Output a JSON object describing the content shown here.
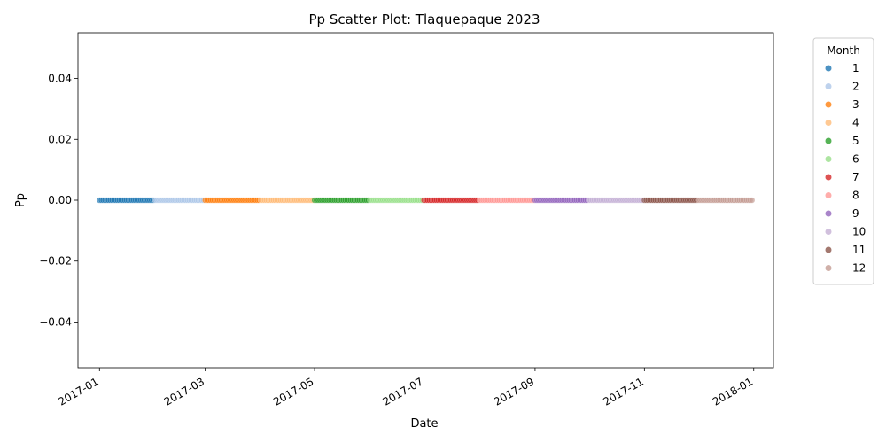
{
  "chart_data": {
    "type": "scatter",
    "title": "Pp Scatter Plot: Tlaquepaque 2023",
    "xlabel": "Date",
    "ylabel": "Pp",
    "x_start": "2017-01-01",
    "x_end": "2017-12-31",
    "xlim": [
      "2016-12-20",
      "2018-01-12"
    ],
    "ylim": [
      -0.055,
      0.055
    ],
    "x_ticks": [
      "2017-01",
      "2017-03",
      "2017-05",
      "2017-07",
      "2017-09",
      "2017-11",
      "2018-01"
    ],
    "y_ticks": [
      "−0.04",
      "−0.02",
      "0.00",
      "0.02",
      "0.04"
    ],
    "y_tick_values": [
      -0.04,
      -0.02,
      0.0,
      0.02,
      0.04
    ],
    "value": 0.0,
    "grid": false,
    "legend": {
      "title": "Month",
      "placement": "outside-right",
      "entries": [
        "1",
        "2",
        "3",
        "4",
        "5",
        "6",
        "7",
        "8",
        "9",
        "10",
        "11",
        "12"
      ]
    },
    "series_colors": [
      "#1f77b4",
      "#aec7e8",
      "#ff7f0e",
      "#ffbb78",
      "#2ca02c",
      "#98df8a",
      "#d62728",
      "#ff9896",
      "#9467bd",
      "#c5b0d5",
      "#8c564b",
      "#c49c94"
    ]
  }
}
